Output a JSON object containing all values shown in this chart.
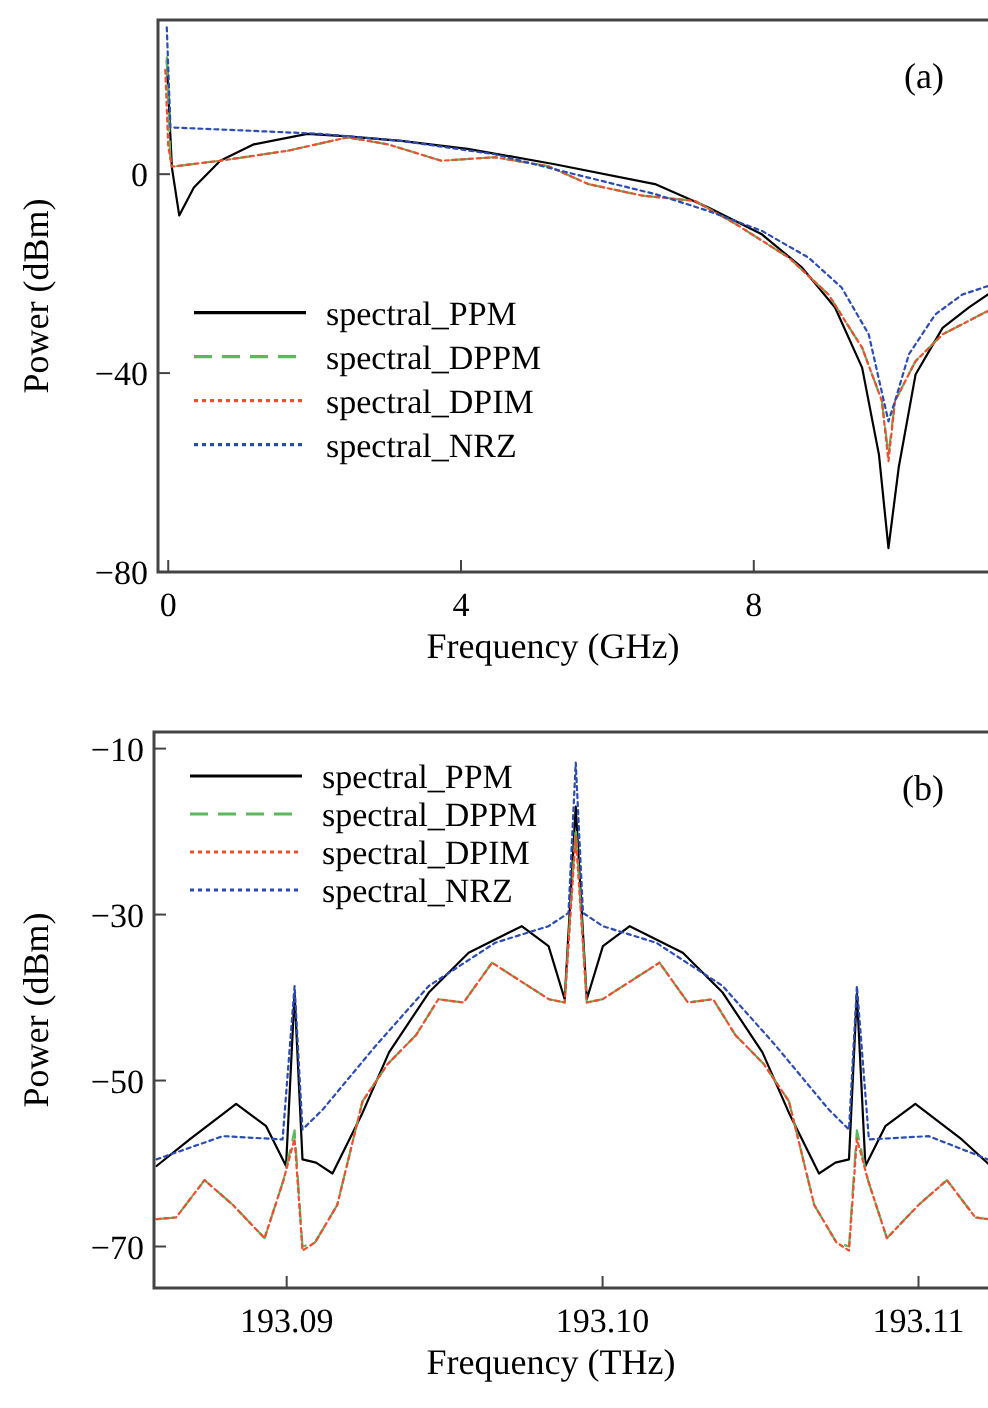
{
  "chart_data": [
    {
      "type": "line",
      "xlabel": "Frequency (GHz)",
      "ylabel": "Power (dBm)",
      "xlim": [
        -0.14,
        11.2
      ],
      "ylim": [
        -80,
        31
      ],
      "xticks": [
        0,
        4,
        8
      ],
      "yticks": [
        -80,
        -40,
        0
      ],
      "legend": "left",
      "grid": false,
      "annotations": [
        "(a)"
      ],
      "series": [
        {
          "name": "spectral_PPM",
          "color": "#000000",
          "line_style": "solid",
          "x": [
            -0.02,
            0.05,
            0.15,
            0.35,
            0.71,
            1.17,
            1.9,
            2.45,
            3.18,
            4.09,
            5.28,
            6.65,
            7.38,
            8.11,
            8.66,
            9.11,
            9.48,
            9.71,
            9.84,
            9.98,
            10.21,
            10.58,
            10.94,
            11.2
          ],
          "values": [
            22.8,
            1.3,
            -8.3,
            -2.7,
            2.7,
            6,
            8.1,
            7.6,
            6.7,
            5.1,
            2,
            -2,
            -6.7,
            -12.1,
            -18.8,
            -26.8,
            -38.9,
            -56.4,
            -75.2,
            -59,
            -40.3,
            -30.9,
            -26.8,
            -24.2
          ]
        },
        {
          "name": "spectral_DPPM",
          "color": "#5cb85c",
          "line_style": "dashed",
          "x": [
            -0.02,
            0.03,
            0.12,
            0.71,
            1.63,
            2.45,
            3.0,
            3.73,
            4.46,
            5.19,
            5.74,
            6.47,
            7.2,
            7.75,
            8.48,
            9.02,
            9.48,
            9.75,
            9.84,
            9.93,
            10.21,
            10.58,
            11.2
          ],
          "values": [
            23.5,
            2.7,
            1.6,
            2.7,
            4.7,
            7.4,
            6,
            2.7,
            3.4,
            1.6,
            -2,
            -4.3,
            -5.4,
            -10,
            -16.8,
            -24.2,
            -34.9,
            -45.6,
            -56.4,
            -45.6,
            -37.6,
            -32.2,
            -27.5
          ]
        },
        {
          "name": "spectral_DPIM",
          "color": "#f04e30",
          "line_style": "dotted",
          "x": [
            -0.04,
            0.0,
            0.05,
            0.71,
            1.63,
            2.45,
            3.0,
            3.73,
            4.46,
            5.19,
            5.74,
            6.47,
            7.2,
            7.75,
            8.48,
            9.02,
            9.48,
            9.75,
            9.84,
            9.93,
            10.21,
            10.58,
            11.2
          ],
          "values": [
            21,
            5.6,
            1.5,
            2.7,
            4.7,
            7.4,
            6,
            2.7,
            3.4,
            1.6,
            -2,
            -4.3,
            -5.4,
            -10,
            -16.8,
            -24.2,
            -34.9,
            -45.6,
            -57.7,
            -45.6,
            -37.6,
            -32.2,
            -27.5
          ]
        },
        {
          "name": "spectral_NRZ",
          "color": "#2b4bb5",
          "line_style": "dotted",
          "x": [
            -0.02,
            0.03,
            1.17,
            2.08,
            3.18,
            4.46,
            5.74,
            6.65,
            7.38,
            8.11,
            8.75,
            9.2,
            9.57,
            9.84,
            9.93,
            10.12,
            10.48,
            10.85,
            11.2
          ],
          "values": [
            29.5,
            9.4,
            8.7,
            8.1,
            6.7,
            4,
            -0.7,
            -4,
            -7.4,
            -11.4,
            -16.8,
            -22.8,
            -32.2,
            -49.7,
            -45.6,
            -36.2,
            -28.2,
            -24.2,
            -22.5
          ]
        }
      ]
    },
    {
      "type": "line",
      "xlabel": "Frequency (THz)",
      "ylabel": "Power (dBm)",
      "xlim": [
        193.0858,
        193.1122
      ],
      "ylim": [
        -75,
        -8
      ],
      "xticks": [
        193.09,
        {
          "value": 193.1,
          "label": "193.10"
        },
        193.11
      ],
      "yticks": [
        -70,
        -50,
        -30,
        -10
      ],
      "legend": "top left",
      "grid": false,
      "annotations": [
        "(b)"
      ],
      "series": [
        {
          "name": "spectral_PPM",
          "color": "#000000",
          "line_style": "solid",
          "x": [
            193.08588,
            193.08693,
            193.0884,
            193.08935,
            193.08998,
            193.09025,
            193.0905,
            193.09093,
            193.09145,
            193.0924,
            193.09324,
            193.0945,
            193.09576,
            193.09744,
            193.09829,
            193.0988,
            193.09915,
            193.0995,
            193.10001,
            193.10086,
            193.10254,
            193.1038,
            193.10506,
            193.1059,
            193.10685,
            193.10737,
            193.1078,
            193.10805,
            193.10832,
            193.10895,
            193.1099,
            193.11137,
            193.1122
          ],
          "values": [
            -60.3,
            -57.1,
            -52.8,
            -55.5,
            -60.3,
            -39.5,
            -59.5,
            -59.9,
            -61.2,
            -53.9,
            -46.6,
            -39.4,
            -34.6,
            -31.4,
            -33.8,
            -40.2,
            -17,
            -40.2,
            -33.8,
            -31.4,
            -34.6,
            -39.4,
            -46.6,
            -53.9,
            -61.2,
            -59.9,
            -59.5,
            -39.5,
            -60.3,
            -55.5,
            -52.8,
            -57.1,
            -60
          ]
        },
        {
          "name": "spectral_DPPM",
          "color": "#5cb85c",
          "line_style": "dashed",
          "x": [
            193.08588,
            193.0865,
            193.0874,
            193.0883,
            193.0893,
            193.0899,
            193.09025,
            193.0905,
            193.0909,
            193.0916,
            193.0924,
            193.0932,
            193.0941,
            193.0948,
            193.0956,
            193.0965,
            193.0974,
            193.0983,
            193.0988,
            193.09915,
            193.0995,
            193.1,
            193.1009,
            193.1018,
            193.1027,
            193.1035,
            193.1042,
            193.1051,
            193.1059,
            193.1067,
            193.1074,
            193.1078,
            193.10805,
            193.1084,
            193.109,
            193.11,
            193.1109,
            193.1118,
            193.1122
          ],
          "values": [
            -66.7,
            -66.5,
            -62,
            -65,
            -69,
            -62,
            -56,
            -70,
            -69.5,
            -65,
            -52.5,
            -48,
            -44.5,
            -40.2,
            -40.6,
            -35.8,
            -38,
            -40.2,
            -40.6,
            -19.5,
            -40.6,
            -40.2,
            -38,
            -35.8,
            -40.6,
            -40.2,
            -44.5,
            -48,
            -52.5,
            -65,
            -69.5,
            -70,
            -56,
            -62,
            -69,
            -65,
            -62,
            -66.5,
            -66.7
          ]
        },
        {
          "name": "spectral_DPIM",
          "color": "#f04e30",
          "line_style": "dotted",
          "x": [
            193.08588,
            193.0865,
            193.0874,
            193.0883,
            193.0893,
            193.0899,
            193.09025,
            193.0905,
            193.0909,
            193.0916,
            193.0924,
            193.0932,
            193.0941,
            193.0948,
            193.0956,
            193.0965,
            193.0974,
            193.0983,
            193.0988,
            193.09915,
            193.0995,
            193.1,
            193.1009,
            193.1018,
            193.1027,
            193.1035,
            193.1042,
            193.1051,
            193.1059,
            193.1067,
            193.1074,
            193.1078,
            193.10805,
            193.1084,
            193.109,
            193.11,
            193.1109,
            193.1118,
            193.1122
          ],
          "values": [
            -66.7,
            -66.5,
            -62,
            -65,
            -69,
            -62,
            -57,
            -70.5,
            -69.5,
            -65,
            -52.5,
            -48,
            -44.5,
            -40.2,
            -40.6,
            -35.8,
            -38,
            -40.2,
            -40.6,
            -20.5,
            -40.6,
            -40.2,
            -38,
            -35.8,
            -40.6,
            -40.2,
            -44.5,
            -48,
            -52.5,
            -65,
            -69.5,
            -70.5,
            -57,
            -62,
            -69,
            -65,
            -62,
            -66.5,
            -66.7
          ]
        },
        {
          "name": "spectral_NRZ",
          "color": "#2b4bb5",
          "line_style": "dotted",
          "x": [
            193.08588,
            193.08798,
            193.08987,
            193.09025,
            193.0905,
            193.09114,
            193.09282,
            193.0945,
            193.0966,
            193.09829,
            193.09892,
            193.09915,
            193.09938,
            193.10001,
            193.1017,
            193.1038,
            193.10548,
            193.10716,
            193.1078,
            193.10805,
            193.10843,
            193.11032,
            193.1122
          ],
          "values": [
            -59.5,
            -56.7,
            -57.1,
            -38.6,
            -55.9,
            -53.5,
            -45.8,
            -38.6,
            -33.4,
            -31.4,
            -29.8,
            -11.7,
            -29.8,
            -31.4,
            -33.4,
            -38.6,
            -45.8,
            -53.5,
            -55.9,
            -38.6,
            -57.1,
            -56.7,
            -59.5
          ]
        }
      ]
    }
  ]
}
